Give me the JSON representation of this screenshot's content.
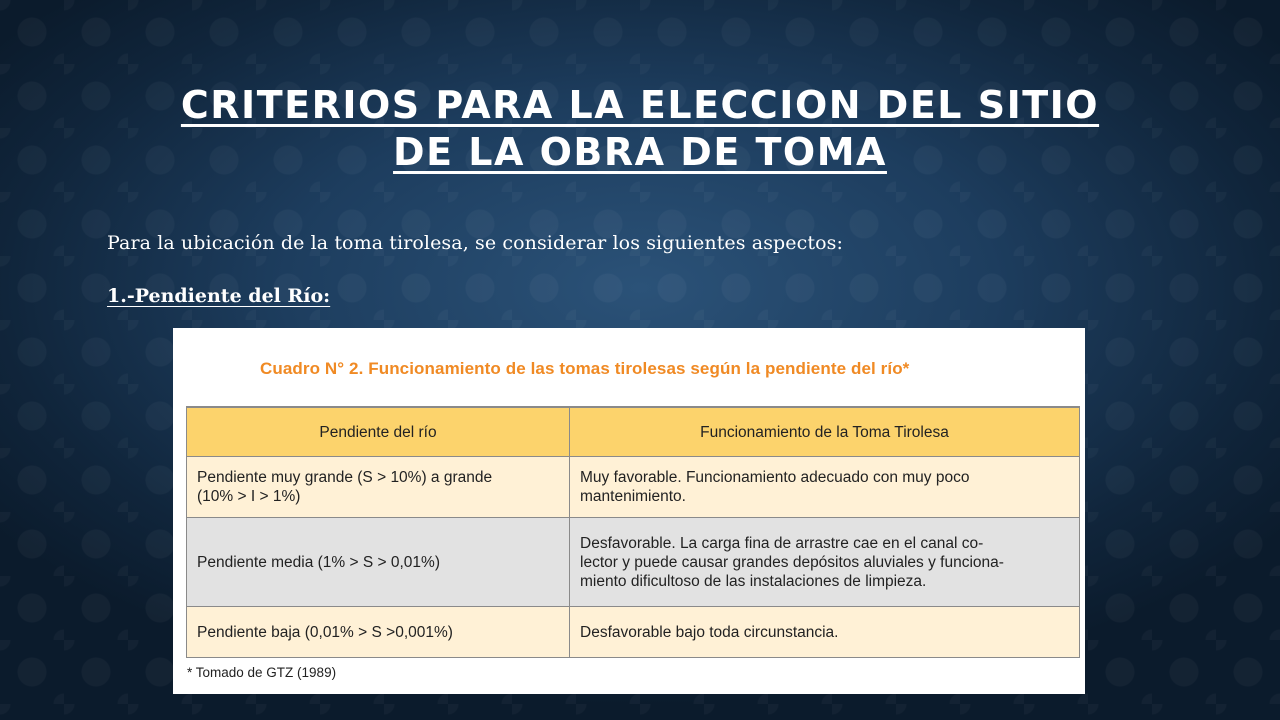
{
  "slide": {
    "title_line1": "CRITERIOS PARA LA ELECCION DEL SITIO",
    "title_line2": "DE LA OBRA DE TOMA",
    "intro": "Para la ubicación de la toma tirolesa, se considerar los siguientes aspectos:",
    "section_heading": "1.-Pendiente del Río:"
  },
  "table": {
    "caption": "Cuadro N° 2. Funcionamiento de las tomas tirolesas  según la pendiente del río*",
    "headers": [
      "Pendiente del río",
      "Funcionamiento de la Toma Tirolesa"
    ],
    "rows": [
      {
        "pendiente_line1": "Pendiente muy grande (S > 10%) a grande",
        "pendiente_line2": "(10% > I > 1%)",
        "funcionamiento_line1": "Muy favorable. Funcionamiento adecuado con muy poco",
        "funcionamiento_line2": "mantenimiento."
      },
      {
        "pendiente": "Pendiente media (1% > S > 0,01%)",
        "funcionamiento_line1": "Desfavorable. La carga fina de arrastre  cae en el canal co-",
        "funcionamiento_line2": "lector y puede causar grandes depósitos aluviales y funciona-",
        "funcionamiento_line3": "miento dificultoso de las instalaciones de limpieza."
      },
      {
        "pendiente": "Pendiente baja (0,01% > S >0,001%)",
        "funcionamiento": "Desfavorable bajo toda circunstancia."
      }
    ],
    "footnote": "* Tomado de GTZ (1989)"
  },
  "colors": {
    "background": "#1d3d5e",
    "caption_orange": "#f08a24",
    "header_yellow": "#fcd36c",
    "row_cream": "#fff1d6",
    "row_grey": "#e2e2e2"
  }
}
